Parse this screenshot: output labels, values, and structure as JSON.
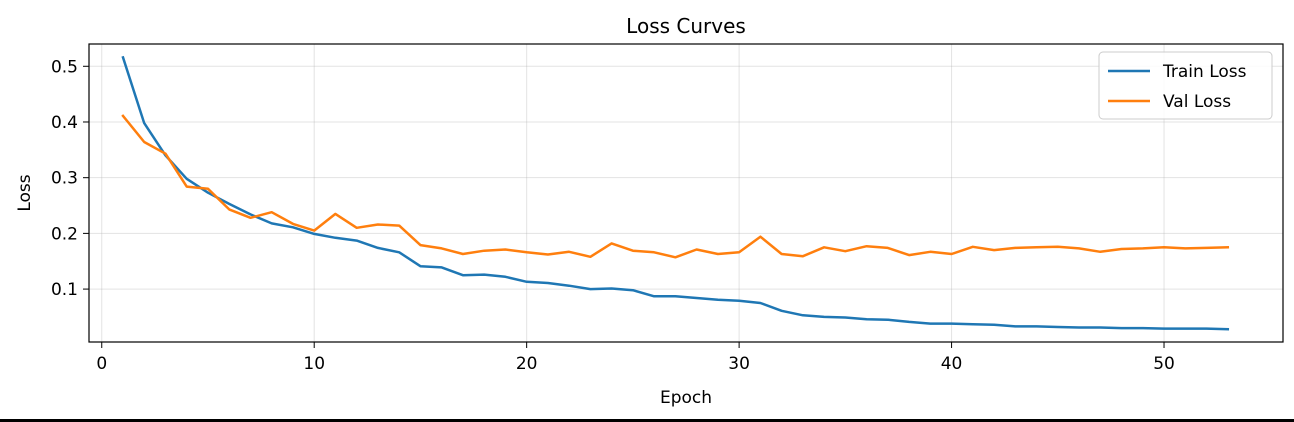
{
  "chart_data": {
    "type": "line",
    "title": "Loss Curves",
    "xlabel": "Epoch",
    "ylabel": "Loss",
    "xlim": [
      -0.6,
      55.6
    ],
    "ylim": [
      0.005,
      0.54
    ],
    "xticks": [
      0,
      10,
      20,
      30,
      40,
      50
    ],
    "yticks": [
      0.1,
      0.2,
      0.3,
      0.4,
      0.5
    ],
    "xtick_labels": [
      "0",
      "10",
      "20",
      "30",
      "40",
      "50"
    ],
    "ytick_labels": [
      "0.1",
      "0.2",
      "0.3",
      "0.4",
      "0.5"
    ],
    "grid": true,
    "legend_position": "top-right",
    "x": [
      1,
      2,
      3,
      4,
      5,
      6,
      7,
      8,
      9,
      10,
      11,
      12,
      13,
      14,
      15,
      16,
      17,
      18,
      19,
      20,
      21,
      22,
      23,
      24,
      25,
      26,
      27,
      28,
      29,
      30,
      31,
      32,
      33,
      34,
      35,
      36,
      37,
      38,
      39,
      40,
      41,
      42,
      43,
      44,
      45,
      46,
      47,
      48,
      49,
      50,
      51,
      52,
      53
    ],
    "series": [
      {
        "name": "Train Loss",
        "color": "#1f77b4",
        "values": [
          0.516,
          0.398,
          0.34,
          0.298,
          0.273,
          0.253,
          0.234,
          0.218,
          0.211,
          0.199,
          0.192,
          0.187,
          0.174,
          0.166,
          0.141,
          0.139,
          0.125,
          0.126,
          0.122,
          0.113,
          0.111,
          0.106,
          0.1,
          0.101,
          0.098,
          0.087,
          0.087,
          0.084,
          0.081,
          0.079,
          0.075,
          0.061,
          0.053,
          0.05,
          0.049,
          0.046,
          0.045,
          0.041,
          0.038,
          0.038,
          0.037,
          0.036,
          0.033,
          0.033,
          0.032,
          0.031,
          0.031,
          0.03,
          0.03,
          0.029,
          0.029,
          0.029,
          0.028
        ]
      },
      {
        "name": "Val Loss",
        "color": "#ff7f0e",
        "values": [
          0.411,
          0.364,
          0.343,
          0.284,
          0.28,
          0.243,
          0.228,
          0.238,
          0.217,
          0.205,
          0.235,
          0.21,
          0.216,
          0.214,
          0.179,
          0.173,
          0.163,
          0.169,
          0.171,
          0.166,
          0.162,
          0.167,
          0.158,
          0.182,
          0.169,
          0.166,
          0.157,
          0.171,
          0.163,
          0.166,
          0.194,
          0.163,
          0.159,
          0.175,
          0.168,
          0.177,
          0.174,
          0.161,
          0.167,
          0.163,
          0.176,
          0.17,
          0.174,
          0.175,
          0.176,
          0.173,
          0.167,
          0.172,
          0.173,
          0.175,
          0.173,
          0.174,
          0.175
        ]
      }
    ]
  }
}
